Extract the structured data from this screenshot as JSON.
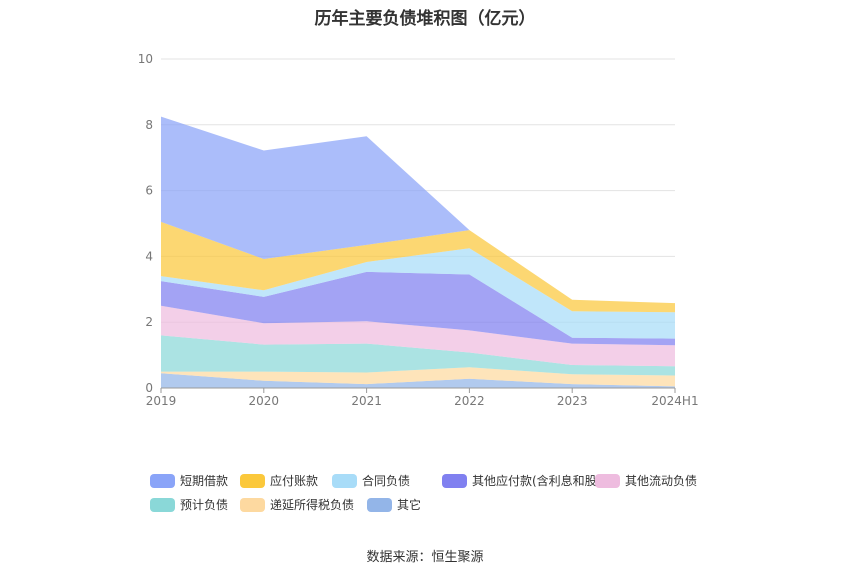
{
  "chart_data": {
    "type": "area",
    "stacked": true,
    "title": "历年主要负债堆积图（亿元）",
    "categories": [
      "2019",
      "2020",
      "2021",
      "2022",
      "2023",
      "2024H1"
    ],
    "ylim": [
      0,
      10
    ],
    "yticks": [
      "0",
      "2",
      "4",
      "6",
      "8",
      "10"
    ],
    "grid": true,
    "legend_position": "bottom",
    "series": [
      {
        "name": "其它",
        "color": "#93b5e8",
        "values": [
          0.45,
          0.22,
          0.12,
          0.28,
          0.12,
          0.05
        ]
      },
      {
        "name": "递延所得税负债",
        "color": "#fdd9a0",
        "values": [
          0.05,
          0.28,
          0.35,
          0.35,
          0.3,
          0.33
        ]
      },
      {
        "name": "预计负债",
        "color": "#8ad8d8",
        "values": [
          1.1,
          0.82,
          0.88,
          0.45,
          0.28,
          0.28
        ]
      },
      {
        "name": "其他流动负债",
        "color": "#eebcdf",
        "values": [
          0.9,
          0.65,
          0.68,
          0.67,
          0.65,
          0.64
        ]
      },
      {
        "name": "其他应付款(含利息和股利)",
        "color": "#8080f0",
        "values": [
          0.75,
          0.8,
          1.5,
          1.7,
          0.18,
          0.2
        ]
      },
      {
        "name": "合同负债",
        "color": "#a8dcf8",
        "values": [
          0.15,
          0.2,
          0.3,
          0.8,
          0.8,
          0.8
        ]
      },
      {
        "name": "应付账款",
        "color": "#fbc83b",
        "values": [
          1.65,
          0.95,
          0.52,
          0.55,
          0.35,
          0.28
        ]
      },
      {
        "name": "短期借款",
        "color": "#8aa4f8",
        "values": [
          3.2,
          3.3,
          3.3,
          0.0,
          0.0,
          0.0
        ]
      }
    ]
  },
  "legend_rows": [
    [
      "短期借款",
      "应付账款",
      "合同负债",
      "其他应付款(含利息和股利)",
      "其他流动负债"
    ],
    [
      "预计负债",
      "递延所得税负债",
      "其它"
    ]
  ],
  "source": "数据来源：恒生聚源"
}
